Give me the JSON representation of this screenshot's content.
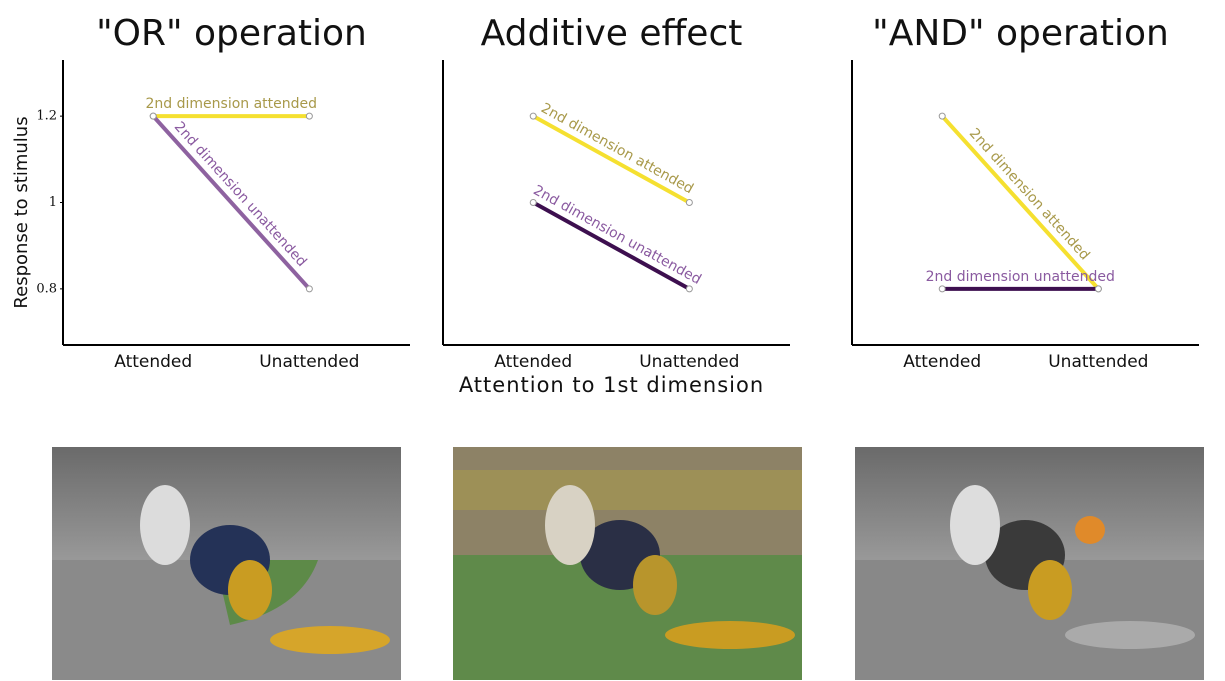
{
  "chart_data": [
    {
      "type": "line",
      "title": "\"OR\" operation",
      "y_label": "Response to stimulus",
      "categories": [
        "Attended",
        "Unattended"
      ],
      "ylim": [
        0.67,
        1.33
      ],
      "yticks": [
        0.8,
        1,
        1.2
      ],
      "series": [
        {
          "name": "2nd dimension attended",
          "color": "#f5e030",
          "label_color": "#a8994a",
          "values": [
            1.2,
            1.2
          ]
        },
        {
          "name": "2nd dimension unattended",
          "color": "#8e62a0",
          "label_color": "#8a5aa0",
          "values": [
            1.2,
            0.8
          ]
        }
      ]
    },
    {
      "type": "line",
      "title": "Additive effect",
      "x_label": "Attention to 1st dimension",
      "categories": [
        "Attended",
        "Unattended"
      ],
      "ylim": [
        0.67,
        1.33
      ],
      "series": [
        {
          "name": "2nd dimension attended",
          "color": "#f5e030",
          "label_color": "#a8994a",
          "values": [
            1.2,
            1.0
          ]
        },
        {
          "name": "2nd dimension unattended",
          "color": "#3d0f4f",
          "label_color": "#8a5aa0",
          "values": [
            1.0,
            0.8
          ]
        }
      ]
    },
    {
      "type": "line",
      "title": "\"AND\" operation",
      "categories": [
        "Attended",
        "Unattended"
      ],
      "ylim": [
        0.67,
        1.33
      ],
      "series": [
        {
          "name": "2nd dimension attended",
          "color": "#f5e030",
          "label_color": "#a8994a",
          "values": [
            1.2,
            0.8
          ]
        },
        {
          "name": "2nd dimension unattended",
          "color": "#3d0f4f",
          "label_color": "#8a5aa0",
          "values": [
            0.8,
            0.8
          ]
        }
      ]
    }
  ]
}
